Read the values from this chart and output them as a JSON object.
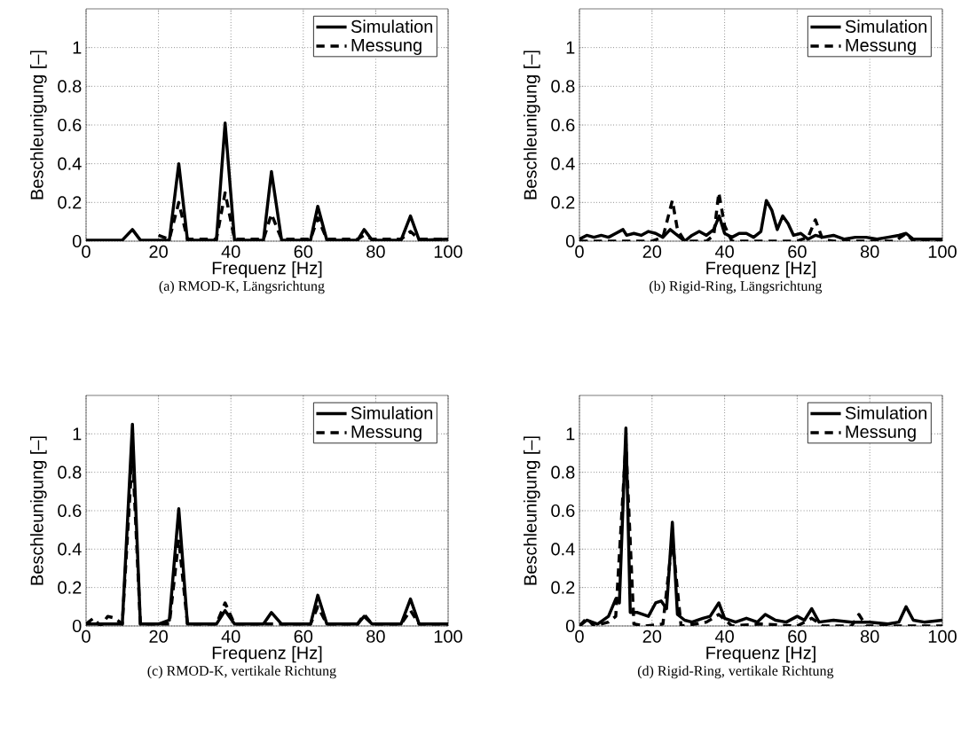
{
  "chart_data": [
    {
      "type": "line",
      "xlabel": "Frequenz [Hz]",
      "ylabel": "Beschleunigung [–]",
      "annotations": [
        "(a) RMOD-K, Längsrichtung"
      ],
      "xlim": [
        0,
        100
      ],
      "ylim": [
        0,
        1.2
      ],
      "xticks": [
        0,
        20,
        40,
        60,
        80,
        100
      ],
      "yticks": [
        0,
        0.2,
        0.4,
        0.6,
        0.8,
        1
      ],
      "grid": true,
      "legend": "top right",
      "series": [
        {
          "name": "Simulation",
          "color": "#000000",
          "line_style": "solid",
          "x": [
            0,
            10,
            12.8,
            15,
            23,
            25.6,
            28,
            36,
            38.4,
            41,
            49,
            51.2,
            54,
            62,
            64,
            66.5,
            75,
            76.8,
            79,
            87,
            89.6,
            92,
            100
          ],
          "values": [
            0.005,
            0.005,
            0.06,
            0.005,
            0.005,
            0.4,
            0.005,
            0.005,
            0.61,
            0.005,
            0.005,
            0.36,
            0.005,
            0.005,
            0.18,
            0.005,
            0.005,
            0.06,
            0.005,
            0.005,
            0.13,
            0.005,
            0.01
          ]
        },
        {
          "name": "Messung",
          "color": "#000000",
          "line_style": "dashed",
          "x": [
            20,
            23,
            25.6,
            28,
            36,
            38.4,
            41,
            49,
            51.2,
            54,
            62,
            64,
            66.5,
            75,
            76.8,
            79,
            87,
            89.6,
            92,
            100
          ],
          "values": [
            0.03,
            0.01,
            0.2,
            0.01,
            0.01,
            0.25,
            0.01,
            0.01,
            0.14,
            0.01,
            0.01,
            0.12,
            0.01,
            0.01,
            0.03,
            0.01,
            0.01,
            0.05,
            0.01,
            0.01
          ]
        }
      ]
    },
    {
      "type": "line",
      "xlabel": "Frequenz [Hz]",
      "ylabel": "Beschleunigung [–]",
      "annotations": [
        "(b) Rigid-Ring, Längsrichtung"
      ],
      "xlim": [
        0,
        100
      ],
      "ylim": [
        0,
        1.2
      ],
      "xticks": [
        0,
        20,
        40,
        60,
        80,
        100
      ],
      "yticks": [
        0,
        0.2,
        0.4,
        0.6,
        0.8,
        1
      ],
      "grid": true,
      "legend": "top right",
      "series": [
        {
          "name": "Simulation",
          "color": "#000000",
          "line_style": "solid",
          "x": [
            0,
            2,
            4,
            6,
            8,
            10,
            12,
            13,
            15,
            17,
            19,
            21,
            23,
            25,
            27,
            29,
            31,
            33,
            35,
            37,
            38.5,
            40,
            42,
            44,
            46,
            48,
            50,
            51.5,
            53,
            54.5,
            56,
            57.5,
            59,
            61,
            63,
            65,
            67,
            70,
            73,
            76,
            79,
            82,
            85,
            88,
            90,
            92,
            95,
            100
          ],
          "values": [
            0.01,
            0.03,
            0.02,
            0.03,
            0.02,
            0.04,
            0.06,
            0.03,
            0.04,
            0.03,
            0.05,
            0.04,
            0.02,
            0.06,
            0.03,
            0.0,
            0.03,
            0.05,
            0.03,
            0.06,
            0.13,
            0.04,
            0.02,
            0.04,
            0.04,
            0.02,
            0.05,
            0.21,
            0.16,
            0.06,
            0.13,
            0.09,
            0.03,
            0.04,
            0.01,
            0.03,
            0.02,
            0.03,
            0.01,
            0.02,
            0.02,
            0.01,
            0.02,
            0.03,
            0.04,
            0.01,
            0.01,
            0.01
          ]
        },
        {
          "name": "Messung",
          "color": "#000000",
          "line_style": "dashed",
          "x": [
            0,
            10,
            20,
            23,
            25.6,
            27,
            29,
            35,
            37,
            38.4,
            40,
            42,
            50,
            60,
            63,
            65,
            67,
            70,
            80,
            87,
            90,
            92,
            100
          ],
          "values": [
            0.0,
            0.0,
            0.0,
            0.02,
            0.21,
            0.06,
            0.0,
            0.0,
            0.03,
            0.25,
            0.08,
            0.0,
            0.0,
            0.0,
            0.02,
            0.11,
            0.01,
            0.0,
            0.0,
            0.0,
            0.04,
            0.0,
            0.0
          ]
        }
      ]
    },
    {
      "type": "line",
      "xlabel": "Frequenz [Hz]",
      "ylabel": "Beschleunigung [–]",
      "annotations": [
        "(c) RMOD-K, vertikale Richtung"
      ],
      "xlim": [
        0,
        100
      ],
      "ylim": [
        0,
        1.2
      ],
      "xticks": [
        0,
        20,
        40,
        60,
        80,
        100
      ],
      "yticks": [
        0,
        0.2,
        0.4,
        0.6,
        0.8,
        1
      ],
      "grid": true,
      "legend": "top right",
      "series": [
        {
          "name": "Simulation",
          "color": "#000000",
          "line_style": "solid",
          "x": [
            0,
            10,
            12.8,
            15,
            18,
            20,
            23,
            25.6,
            28,
            36,
            38.4,
            41,
            49,
            51.2,
            54,
            62,
            64,
            66.5,
            75,
            76.8,
            79,
            87,
            89.6,
            92,
            100
          ],
          "values": [
            0.01,
            0.01,
            1.05,
            0.01,
            0.01,
            0.01,
            0.03,
            0.61,
            0.01,
            0.01,
            0.08,
            0.01,
            0.01,
            0.07,
            0.01,
            0.01,
            0.16,
            0.01,
            0.01,
            0.05,
            0.01,
            0.01,
            0.14,
            0.01,
            0.01
          ]
        },
        {
          "name": "Messung",
          "color": "#000000",
          "line_style": "dashed",
          "x": [
            0,
            2,
            4,
            6,
            8,
            10,
            12.8,
            15,
            23,
            25.6,
            28,
            36,
            38.4,
            41,
            62,
            64,
            66.5,
            75,
            76.8,
            79,
            87,
            89.6,
            92,
            100
          ],
          "values": [
            0.01,
            0.04,
            0.0,
            0.05,
            0.04,
            0.01,
            0.9,
            0.01,
            0.01,
            0.45,
            0.01,
            0.01,
            0.12,
            0.01,
            0.01,
            0.1,
            0.01,
            0.01,
            0.06,
            0.01,
            0.01,
            0.08,
            0.01,
            0.01
          ]
        }
      ]
    },
    {
      "type": "line",
      "xlabel": "Frequenz [Hz]",
      "ylabel": "Beschleunigung [–]",
      "annotations": [
        "(d) Rigid-Ring, vertikale Richtung"
      ],
      "xlim": [
        0,
        100
      ],
      "ylim": [
        0,
        1.2
      ],
      "xticks": [
        0,
        20,
        40,
        60,
        80,
        100
      ],
      "yticks": [
        0,
        0.2,
        0.4,
        0.6,
        0.8,
        1
      ],
      "grid": true,
      "legend": "top right",
      "series": [
        {
          "name": "Simulation",
          "color": "#000000",
          "line_style": "solid",
          "x": [
            0,
            2,
            5,
            8,
            10,
            11,
            12.8,
            14,
            16,
            19,
            21,
            22.5,
            24,
            25.6,
            27,
            29,
            31,
            34,
            36,
            38.4,
            40,
            43,
            46,
            49,
            51.2,
            54,
            57,
            60,
            62,
            64,
            66,
            70,
            75,
            80,
            85,
            88,
            90,
            92,
            95,
            100
          ],
          "values": [
            0.0,
            0.03,
            0.01,
            0.05,
            0.14,
            0.12,
            1.03,
            0.07,
            0.07,
            0.05,
            0.12,
            0.13,
            0.09,
            0.54,
            0.06,
            0.03,
            0.02,
            0.04,
            0.05,
            0.12,
            0.04,
            0.02,
            0.04,
            0.02,
            0.06,
            0.03,
            0.02,
            0.05,
            0.03,
            0.09,
            0.02,
            0.03,
            0.02,
            0.02,
            0.01,
            0.02,
            0.1,
            0.03,
            0.02,
            0.03
          ]
        },
        {
          "name": "Messung",
          "color": "#000000",
          "line_style": "dashed",
          "x": [
            0,
            2,
            4,
            8,
            10,
            12.8,
            15,
            18,
            23,
            25.6,
            28,
            32,
            35,
            38.4,
            42,
            50,
            60,
            64,
            67,
            75,
            77,
            79,
            90,
            100
          ],
          "values": [
            0.0,
            0.04,
            0.0,
            0.02,
            0.05,
            0.95,
            0.01,
            0.0,
            0.01,
            0.45,
            0.0,
            0.01,
            0.02,
            0.06,
            0.0,
            0.01,
            0.0,
            0.04,
            0.0,
            0.0,
            0.06,
            0.0,
            0.0,
            0.0
          ]
        }
      ]
    }
  ]
}
